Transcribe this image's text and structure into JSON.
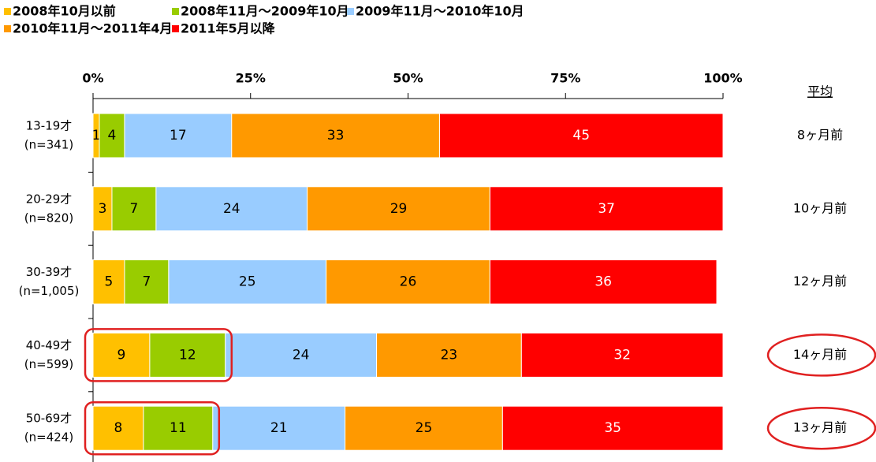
{
  "chart_data": {
    "type": "stacked_barh",
    "categories": [
      [
        "13-19才",
        "(n=341)"
      ],
      [
        "20-29才",
        "(n=820)"
      ],
      [
        "30-39才",
        "(n=1,005)"
      ],
      [
        "40-49才",
        "(n=599)"
      ],
      [
        "50-69才",
        "(n=424)"
      ]
    ],
    "series": [
      {
        "name": "2008年10月以前",
        "color": "#ffc000",
        "values": [
          1,
          3,
          5,
          9,
          8
        ]
      },
      {
        "name": "2008年11月～2009年10月",
        "color": "#99cc00",
        "values": [
          4,
          7,
          7,
          12,
          11
        ]
      },
      {
        "name": "2009年11月～2010年10月",
        "color": "#99ccff",
        "values": [
          17,
          24,
          25,
          24,
          21
        ]
      },
      {
        "name": "2010年11月～2011年4月",
        "color": "#ff9900",
        "values": [
          33,
          29,
          26,
          23,
          25
        ]
      },
      {
        "name": "2011年5月以降",
        "color": "#ff0000",
        "values": [
          45,
          37,
          36,
          32,
          35
        ]
      }
    ],
    "xlim": [
      0,
      100
    ],
    "xticks": [
      {
        "value": 0,
        "label": "0%"
      },
      {
        "value": 25,
        "label": "25%"
      },
      {
        "value": 50,
        "label": "50%"
      },
      {
        "value": 75,
        "label": "75%"
      },
      {
        "value": 100,
        "label": "100%"
      }
    ],
    "average": {
      "label": "平均",
      "values": [
        "8ヶ月前",
        "10ヶ月前",
        "12ヶ月前",
        "14ヶ月前",
        "13ヶ月前"
      ]
    },
    "highlight_rows": [
      3,
      4
    ]
  }
}
